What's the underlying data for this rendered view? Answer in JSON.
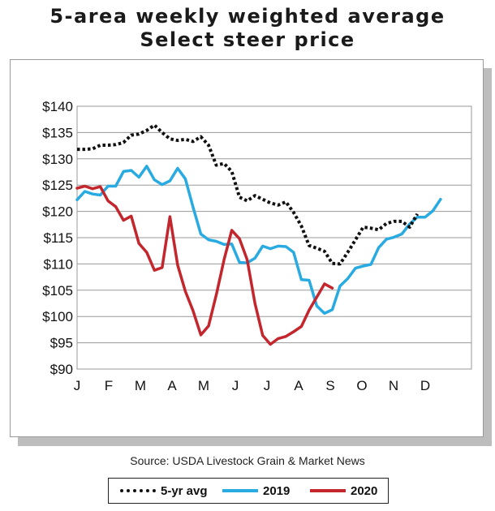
{
  "title_line1": "5-area weekly weighted average",
  "title_line2": "Select steer price",
  "source": "Source: USDA Livestock Grain & Market News",
  "colors": {
    "avg": "#111111",
    "y2019": "#29abe2",
    "y2020": "#c4262e",
    "grid": "#9a9a9a"
  },
  "legend": [
    {
      "label": "5-yr avg",
      "color": "#111111",
      "style": "dotted"
    },
    {
      "label": "2019",
      "color": "#29abe2",
      "style": "solid"
    },
    {
      "label": "2020",
      "color": "#c4262e",
      "style": "solid"
    }
  ],
  "chart_data": {
    "type": "line",
    "title": "5-area weekly weighted average Select steer price",
    "xlabel": "",
    "ylabel": "",
    "x_tick_labels": [
      "J",
      "F",
      "M",
      "A",
      "M",
      "J",
      "J",
      "A",
      "S",
      "O",
      "N",
      "D"
    ],
    "y_tick_labels": [
      "$90",
      "$95",
      "$100",
      "$105",
      "$110",
      "$115",
      "$120",
      "$125",
      "$130",
      "$135",
      "$140"
    ],
    "ylim": [
      90,
      140
    ],
    "xlim": [
      1,
      52
    ],
    "grid": true,
    "legend_position": "bottom",
    "series": [
      {
        "name": "5-yr avg",
        "style": "dotted",
        "x": [
          1,
          2,
          3,
          4,
          5,
          6,
          7,
          8,
          9,
          10,
          11,
          12,
          13,
          14,
          15,
          16,
          17,
          18,
          19,
          20,
          21,
          22,
          23,
          24,
          25,
          26,
          27,
          28,
          29,
          30,
          31,
          32,
          33,
          34,
          35,
          36,
          37,
          38,
          39,
          40,
          41,
          42,
          43,
          44,
          45,
          46,
          47,
          48,
          49,
          50,
          51,
          52
        ],
        "values": [
          131.8,
          131.8,
          131.9,
          132.6,
          132.6,
          132.7,
          133.1,
          134.5,
          134.7,
          135.4,
          136.4,
          135.0,
          133.8,
          133.5,
          133.7,
          133.3,
          134.2,
          132.6,
          128.8,
          129.1,
          127.6,
          122.7,
          122.0,
          123.0,
          122.3,
          121.6,
          121.2,
          121.8,
          119.8,
          117.2,
          113.5,
          113.0,
          112.4,
          110.1,
          110.0,
          112.2,
          114.6,
          117.0,
          116.8,
          116.5,
          117.7,
          118.1,
          118.1,
          117.0,
          119.5,
          null,
          null,
          null,
          null,
          null,
          null,
          null
        ]
      },
      {
        "name": "2019",
        "style": "solid",
        "x": [
          1,
          2,
          3,
          4,
          5,
          6,
          7,
          8,
          9,
          10,
          11,
          12,
          13,
          14,
          15,
          16,
          17,
          18,
          19,
          20,
          21,
          22,
          23,
          24,
          25,
          26,
          27,
          28,
          29,
          30,
          31,
          32,
          33,
          34,
          35,
          36,
          37,
          38,
          39,
          40,
          41,
          42,
          43,
          44,
          45,
          46,
          47,
          48,
          49,
          50,
          51,
          52
        ],
        "values": [
          122.2,
          123.8,
          123.3,
          123.1,
          124.8,
          124.8,
          127.6,
          127.8,
          126.5,
          128.6,
          126.0,
          125.1,
          125.8,
          128.2,
          126.2,
          120.8,
          115.7,
          114.6,
          114.3,
          113.7,
          113.8,
          110.3,
          110.2,
          111.1,
          113.4,
          112.9,
          113.4,
          113.3,
          112.2,
          107.0,
          106.9,
          102.0,
          100.6,
          101.3,
          105.8,
          107.2,
          109.2,
          109.6,
          109.9,
          113.1,
          114.7,
          115.1,
          115.7,
          117.6,
          118.9,
          118.9,
          120.1,
          122.3,
          null,
          null,
          null,
          null
        ]
      },
      {
        "name": "2020",
        "style": "solid",
        "x": [
          1,
          2,
          3,
          4,
          5,
          6,
          7,
          8,
          9,
          10,
          11,
          12,
          13,
          14,
          15,
          16,
          17,
          18,
          19,
          20,
          21,
          22,
          23,
          24,
          25,
          26,
          27,
          28,
          29,
          30,
          31,
          32,
          33,
          34,
          35,
          36,
          37,
          38,
          39,
          40,
          41,
          42,
          43,
          44,
          45,
          46,
          47,
          48,
          49,
          50,
          51,
          52
        ],
        "values": [
          124.4,
          124.8,
          124.3,
          124.7,
          122.0,
          120.9,
          118.3,
          119.1,
          113.9,
          112.2,
          108.8,
          109.3,
          119.0,
          109.8,
          104.8,
          101.1,
          96.5,
          98.2,
          104.1,
          110.8,
          116.4,
          114.8,
          110.8,
          102.5,
          96.4,
          94.7,
          95.8,
          96.2,
          97.1,
          98.1,
          101.2,
          103.7,
          106.2,
          105.4,
          null,
          null,
          null,
          null,
          null,
          null,
          null,
          null,
          null,
          null,
          null,
          null,
          null,
          null,
          null,
          null,
          null,
          null
        ]
      }
    ]
  }
}
